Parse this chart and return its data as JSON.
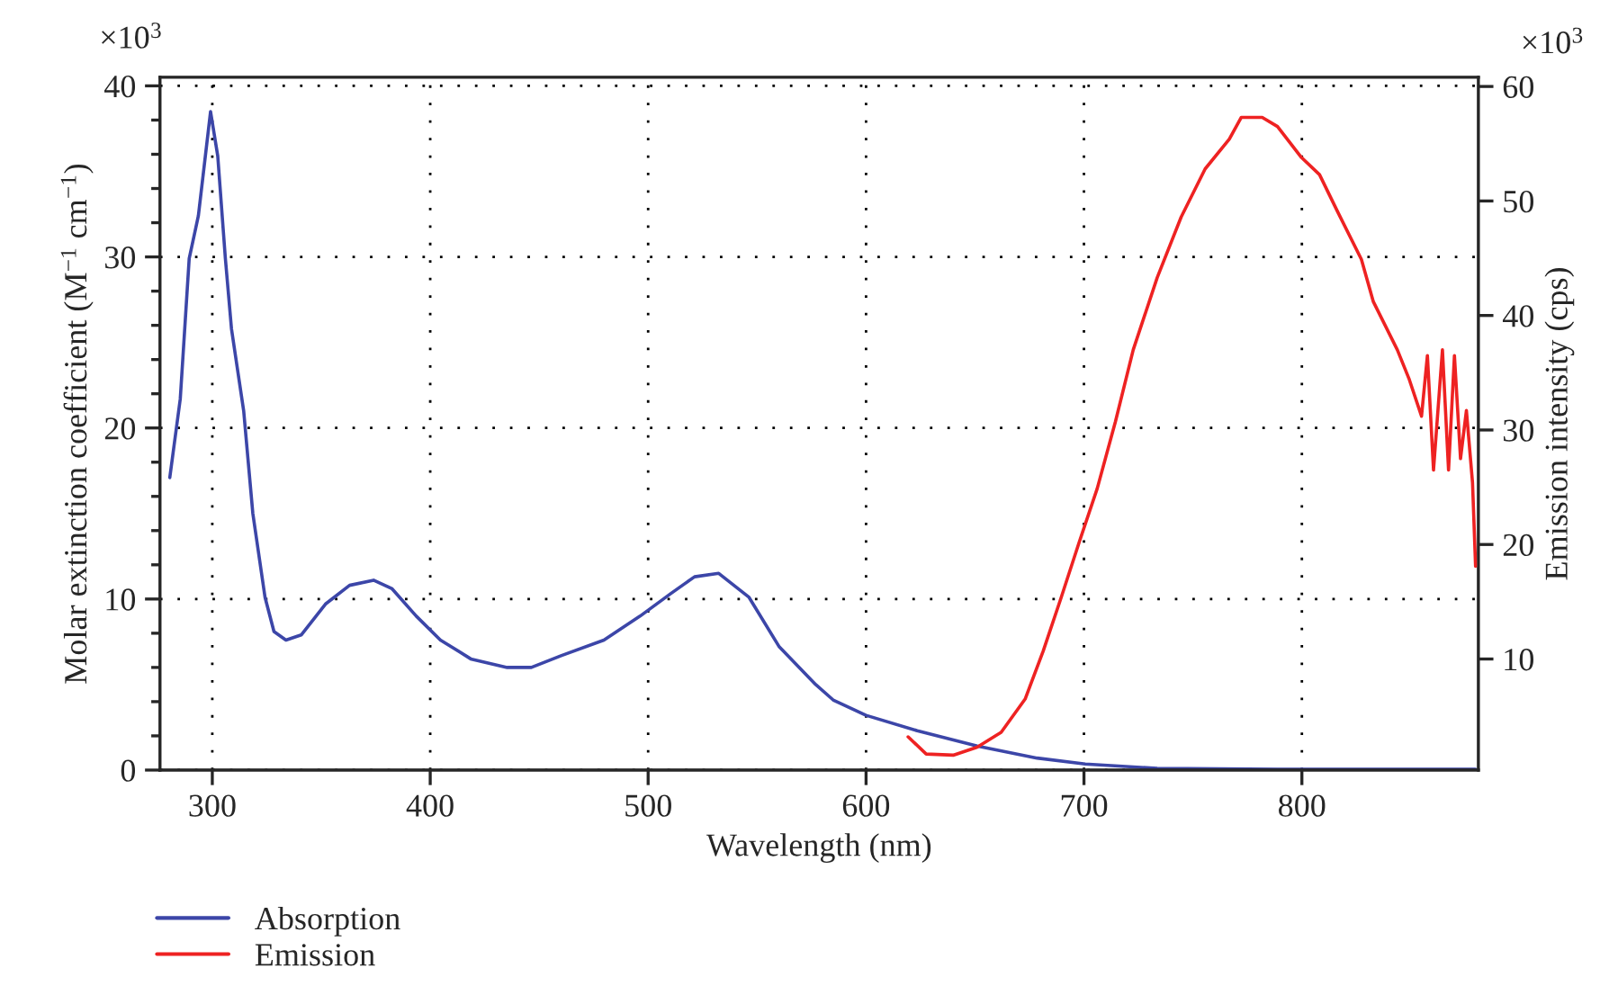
{
  "chart_data": {
    "type": "line",
    "xlabel": "Wavelength (nm)",
    "ylabel": "Molar extinction coefficient (M$^{−1}$ cm$^{−1}$)",
    "y2label": "Emission intensity (cps)",
    "annotations": [
      "×10$^{3}$",
      "×10$^{3}$"
    ],
    "xlim": [
      276,
      881
    ],
    "xticks": [
      300,
      400,
      500,
      600,
      700,
      800
    ],
    "ylim": [
      0,
      40.5
    ],
    "yticks": [
      0,
      10,
      20,
      30,
      40
    ],
    "y2lim": [
      0.3,
      60.8
    ],
    "y2ticks": [
      10,
      20,
      30,
      40,
      50,
      60
    ],
    "grid": true,
    "legend": "bottom left",
    "line_style": "solid",
    "marker": "none",
    "series": [
      {
        "name": "Absorption",
        "color": "#3c46a8",
        "x": [
          280.5,
          285.3,
          289.4,
          293.6,
          299.2,
          302.5,
          306,
          308.8,
          314.4,
          318.6,
          324.2,
          328.3,
          333.8,
          340.8,
          351.9,
          363,
          374,
          382.5,
          393.6,
          404.7,
          418.6,
          435.3,
          446.4,
          460.3,
          479.7,
          496.3,
          510.2,
          521.3,
          532.4,
          546.3,
          560.2,
          576.9,
          584.9,
          600,
          623.5,
          651,
          678.5,
          700.6,
          733.6,
          788.8,
          879.7
        ],
        "values": [
          17.1,
          21.7,
          29.9,
          32.4,
          38.5,
          35.9,
          29.9,
          25.8,
          21.0,
          15.0,
          10.1,
          8.1,
          7.6,
          7.9,
          9.7,
          10.8,
          11.1,
          10.6,
          9.0,
          7.6,
          6.5,
          6.0,
          6.0,
          6.7,
          7.6,
          9.0,
          10.3,
          11.3,
          11.5,
          10.1,
          7.2,
          5.0,
          4.1,
          3.2,
          2.3,
          1.4,
          0.7,
          0.35,
          0.1,
          0.05,
          0.05
        ]
      },
      {
        "name": "Emission",
        "color": "#ee2222",
        "axis": "y2",
        "x": [
          619.3,
          627.6,
          640,
          651,
          662,
          673,
          681.3,
          689.6,
          697.8,
          706.1,
          714.4,
          722.6,
          733.6,
          744.6,
          755.6,
          766.7,
          772.2,
          781.8,
          788.8,
          799.8,
          808.1,
          816.3,
          827.3,
          832.8,
          843.8,
          849.3,
          854.9,
          857.6,
          860.4,
          864.5,
          867.3,
          870,
          872.8,
          875.5,
          878.3,
          879.7
        ],
        "values": [
          3.2,
          1.7,
          1.6,
          2.3,
          3.6,
          6.5,
          10.7,
          15.4,
          20.2,
          24.9,
          30.7,
          37,
          43.3,
          48.6,
          52.8,
          55.4,
          57.3,
          57.3,
          56.5,
          53.8,
          52.3,
          49.1,
          44.9,
          41.2,
          37,
          34.4,
          31.2,
          36.5,
          26.5,
          37,
          26.5,
          36.5,
          27.5,
          31.7,
          25.4,
          18.1
        ]
      }
    ]
  }
}
